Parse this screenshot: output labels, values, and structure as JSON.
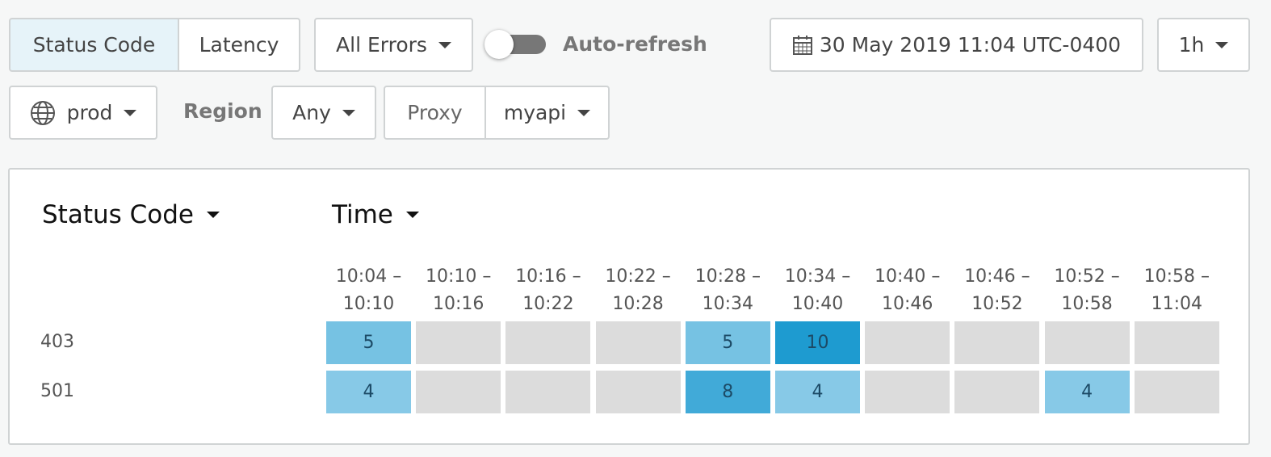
{
  "toolbar": {
    "view_tabs": [
      "Status Code",
      "Latency"
    ],
    "error_filter": "All Errors",
    "auto_refresh": "Auto-refresh",
    "datetime": "30 May 2019 11:04 UTC-0400",
    "range": "1h"
  },
  "filters": {
    "environment": "prod",
    "region_label": "Region",
    "region": "Any",
    "proxy_label": "Proxy",
    "proxy": "myapi"
  },
  "heatmap": {
    "row_header": "Status Code",
    "column_header": "Time",
    "columns": [
      {
        "start": "10:04 –",
        "end": "10:10"
      },
      {
        "start": "10:10 –",
        "end": "10:16"
      },
      {
        "start": "10:16 –",
        "end": "10:22"
      },
      {
        "start": "10:22 –",
        "end": "10:28"
      },
      {
        "start": "10:28 –",
        "end": "10:34"
      },
      {
        "start": "10:34 –",
        "end": "10:40"
      },
      {
        "start": "10:40 –",
        "end": "10:46"
      },
      {
        "start": "10:46 –",
        "end": "10:52"
      },
      {
        "start": "10:52 –",
        "end": "10:58"
      },
      {
        "start": "10:58 –",
        "end": "11:04"
      }
    ],
    "rows": [
      {
        "label": "403",
        "values": [
          5,
          null,
          null,
          null,
          5,
          10,
          null,
          null,
          null,
          null
        ]
      },
      {
        "label": "501",
        "values": [
          4,
          null,
          null,
          null,
          8,
          4,
          null,
          null,
          4,
          null
        ]
      }
    ]
  }
}
